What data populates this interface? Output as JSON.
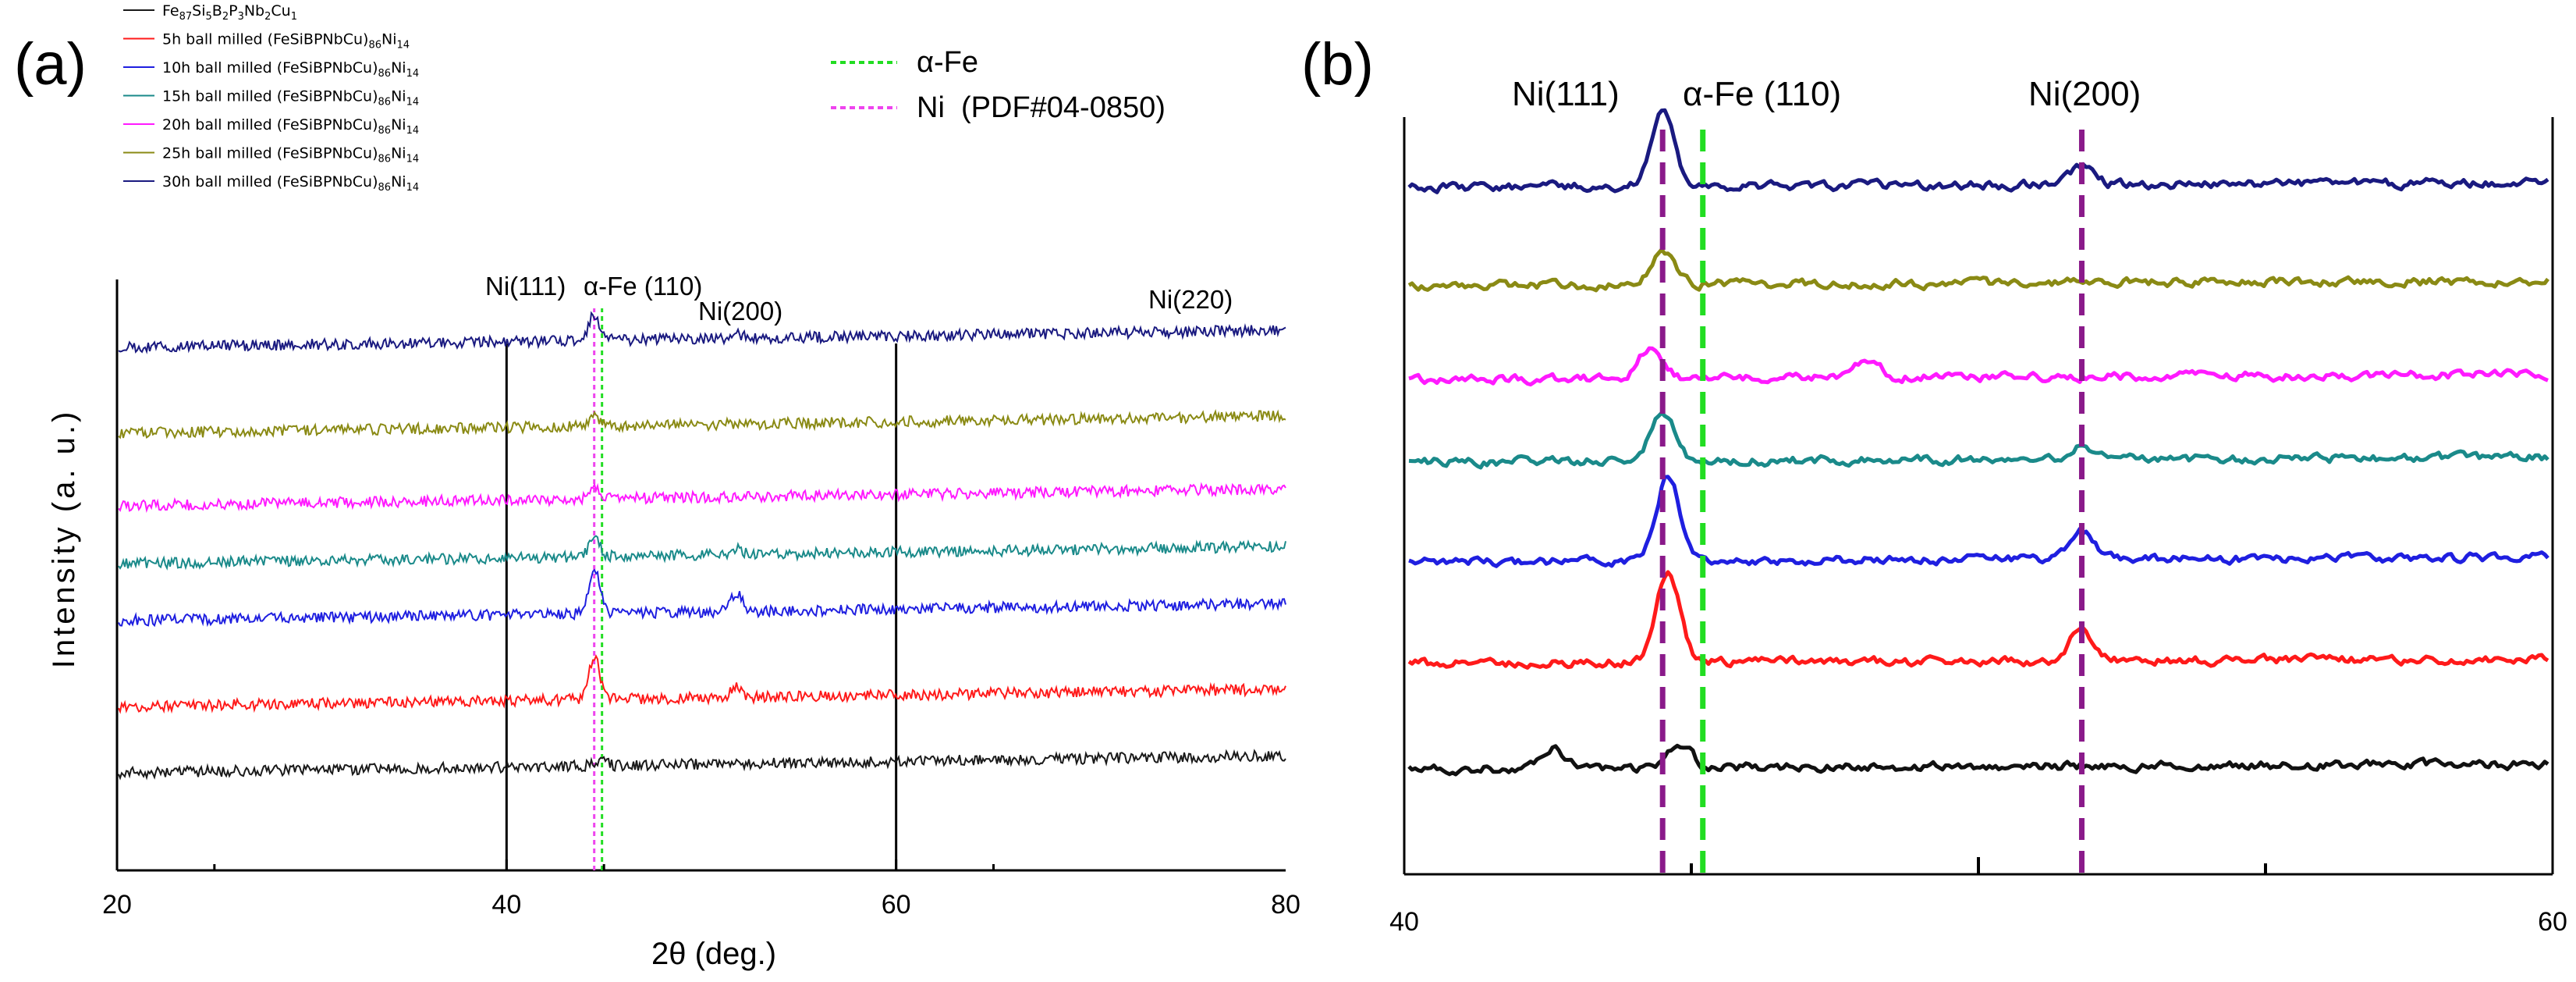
{
  "chart_data": [
    {
      "panel": "(a)",
      "type": "line",
      "xlabel": "2θ (deg.)",
      "ylabel": "Intensity (a. u.)",
      "xlim": [
        20,
        80
      ],
      "xticks": [
        "20",
        "40",
        "60",
        "80"
      ],
      "legend": {
        "placement": "top-left",
        "entries": [
          {
            "name": "Fe87Si5B2P3Nb2Cu1",
            "color": "#1a1a1a"
          },
          {
            "name": "5h ball milled (FeSiBPNbCu)86Ni14",
            "color": "#ff1a1a"
          },
          {
            "name": "10h ball milled (FeSiBPNbCu)86Ni14",
            "color": "#1f1fe0"
          },
          {
            "name": "15h ball milled (FeSiBPNbCu)86Ni14",
            "color": "#1a8a8a"
          },
          {
            "name": "20h ball milled (FeSiBPNbCu)86Ni14",
            "color": "#ff1aff"
          },
          {
            "name": "25h ball milled (FeSiBPNbCu)86Ni14",
            "color": "#8a8a14"
          },
          {
            "name": "30h ball milled (FeSiBPNbCu)86Ni14",
            "color": "#1a1a80"
          }
        ]
      },
      "reference_lines": [
        {
          "name": "α-Fe",
          "x": 44.9,
          "color": "#22dd22",
          "style": "dotted"
        },
        {
          "name": "Ni  (PDF#04-0850)",
          "x": 44.5,
          "color": "#ee44ee",
          "style": "dotted"
        }
      ],
      "marker_lines": [
        40,
        60
      ],
      "annotations": [
        {
          "text": "Ni(111)",
          "x": 44.5
        },
        {
          "text": "α-Fe (110)",
          "x": 44.9
        },
        {
          "text": "Ni(200)",
          "x": 51.8
        },
        {
          "text": "Ni(220)",
          "x": 76.4
        }
      ],
      "series": [
        {
          "name": "Fe87Si5B2P3Nb2Cu1",
          "baseline": 0.5,
          "peaks": [
            [
              44.8,
              0.12
            ]
          ]
        },
        {
          "name": "5h",
          "baseline": 1.0,
          "peaks": [
            [
              44.5,
              0.9
            ],
            [
              51.8,
              0.2
            ]
          ]
        },
        {
          "name": "10h",
          "baseline": 1.6,
          "peaks": [
            [
              44.5,
              0.95
            ],
            [
              51.8,
              0.4
            ]
          ]
        },
        {
          "name": "15h",
          "baseline": 2.1,
          "peaks": [
            [
              44.5,
              0.4
            ],
            [
              51.8,
              0.15
            ]
          ]
        },
        {
          "name": "20h",
          "baseline": 2.5,
          "peaks": [
            [
              44.5,
              0.25
            ]
          ]
        },
        {
          "name": "25h",
          "baseline": 3.0,
          "peaks": [
            [
              44.5,
              0.2
            ]
          ]
        },
        {
          "name": "30h",
          "baseline": 3.4,
          "peaks": [
            [
              44.5,
              0.55
            ],
            [
              51.8,
              0.1
            ]
          ]
        }
      ]
    },
    {
      "panel": "(b)",
      "type": "line",
      "xlim": [
        40,
        60
      ],
      "xticks": [
        "40",
        "60"
      ],
      "annotations": [
        {
          "text": "Ni(111)",
          "x": 44.5
        },
        {
          "text": "α-Fe (110)",
          "x": 45.2
        },
        {
          "text": "Ni(200)",
          "x": 51.8
        }
      ],
      "reference_lines": [
        {
          "name": "Ni",
          "x": [
            44.5,
            51.8
          ],
          "color": "#8a1a8a",
          "style": "dashed"
        },
        {
          "name": "α-Fe",
          "x": [
            45.2
          ],
          "color": "#22dd22",
          "style": "dashed"
        }
      ],
      "series": [
        {
          "name": "Fe87Si5B2P3Nb2Cu1",
          "color": "#111111",
          "baseline": 0.5,
          "peaks": [
            [
              44.8,
              0.45
            ],
            [
              42.6,
              0.35
            ]
          ]
        },
        {
          "name": "5h",
          "color": "#ff1a1a",
          "baseline": 1.0,
          "peaks": [
            [
              44.6,
              1.7
            ],
            [
              51.8,
              0.6
            ]
          ]
        },
        {
          "name": "10h",
          "color": "#1f1fe0",
          "baseline": 1.6,
          "peaks": [
            [
              44.6,
              1.6
            ],
            [
              51.8,
              0.5
            ]
          ]
        },
        {
          "name": "15h",
          "color": "#1a8a8a",
          "baseline": 2.1,
          "peaks": [
            [
              44.5,
              0.9
            ],
            [
              51.8,
              0.25
            ]
          ]
        },
        {
          "name": "20h",
          "color": "#ff1aff",
          "baseline": 2.5,
          "peaks": [
            [
              44.3,
              0.6
            ],
            [
              48.1,
              0.35
            ]
          ]
        },
        {
          "name": "25h",
          "color": "#8a8a14",
          "baseline": 3.0,
          "peaks": [
            [
              44.5,
              0.6
            ]
          ]
        },
        {
          "name": "30h",
          "color": "#1a1a80",
          "baseline": 3.6,
          "peaks": [
            [
              44.5,
              1.4
            ],
            [
              51.8,
              0.35
            ]
          ]
        }
      ]
    }
  ],
  "labels": {
    "panel_a": "(a)",
    "panel_b": "(b)",
    "legend_subs": {
      "fe": "87",
      "si": "5",
      "b": "2",
      "p": "3",
      "nb": "2",
      "cu": "1",
      "m": "86",
      "ni": "14"
    }
  }
}
